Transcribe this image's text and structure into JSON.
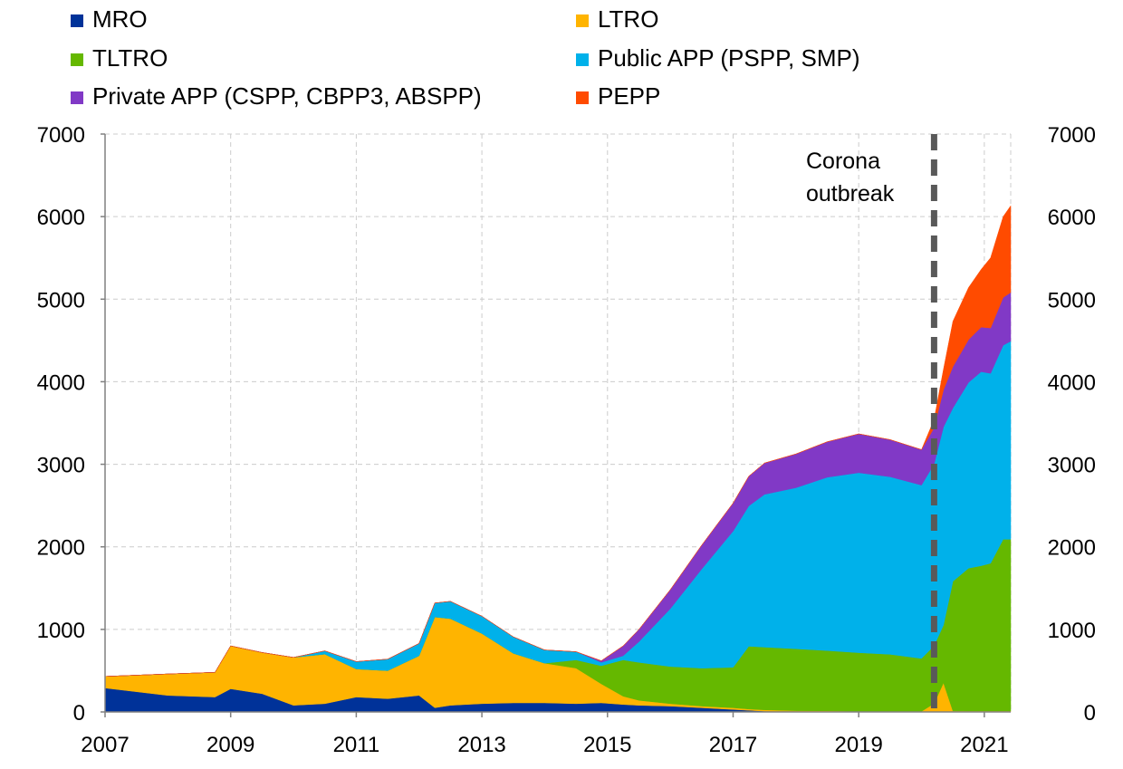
{
  "chart_data": {
    "type": "area",
    "stacked": true,
    "x_unit": "year",
    "xlim": [
      2007,
      2021.42
    ],
    "ylim": [
      0,
      7000
    ],
    "x_ticks": [
      2007,
      2009,
      2011,
      2013,
      2015,
      2017,
      2019,
      2021
    ],
    "x_tick_labels": [
      "2007",
      "2009",
      "2011",
      "2013",
      "2015",
      "2017",
      "2019",
      "2021"
    ],
    "y_ticks": [
      0,
      1000,
      2000,
      3000,
      4000,
      5000,
      6000,
      7000
    ],
    "y_tick_labels": [
      "0",
      "1000",
      "2000",
      "3000",
      "4000",
      "5000",
      "6000",
      "7000"
    ],
    "secondary_y_axis": true,
    "grid": true,
    "legend_position": "top",
    "x": [
      2007.0,
      2008.0,
      2008.75,
      2009.0,
      2009.5,
      2010.0,
      2010.5,
      2011.0,
      2011.5,
      2012.0,
      2012.25,
      2012.5,
      2013.0,
      2013.5,
      2014.0,
      2014.5,
      2014.9,
      2015.25,
      2015.5,
      2016.0,
      2016.5,
      2017.0,
      2017.25,
      2017.5,
      2018.0,
      2018.5,
      2019.0,
      2019.5,
      2020.0,
      2020.2,
      2020.35,
      2020.5,
      2020.75,
      2020.95,
      2021.1,
      2021.3,
      2021.42
    ],
    "series": [
      {
        "name": "MRO",
        "color": "#003299",
        "values": [
          290,
          200,
          180,
          280,
          220,
          80,
          100,
          180,
          160,
          200,
          50,
          80,
          100,
          110,
          110,
          100,
          110,
          90,
          80,
          70,
          50,
          30,
          20,
          10,
          5,
          3,
          3,
          3,
          2,
          2,
          2,
          2,
          1,
          1,
          1,
          1,
          1
        ]
      },
      {
        "name": "LTRO",
        "color": "#FFB400",
        "values": [
          140,
          260,
          300,
          520,
          500,
          580,
          600,
          340,
          340,
          480,
          1100,
          1050,
          850,
          600,
          480,
          430,
          230,
          100,
          60,
          30,
          20,
          20,
          15,
          15,
          10,
          10,
          5,
          5,
          5,
          100,
          350,
          10,
          10,
          10,
          10,
          10,
          10
        ]
      },
      {
        "name": "TLTRO",
        "color": "#65B800",
        "values": [
          0,
          0,
          0,
          0,
          0,
          0,
          0,
          0,
          0,
          0,
          0,
          0,
          0,
          0,
          0,
          100,
          220,
          440,
          460,
          450,
          460,
          490,
          760,
          760,
          750,
          730,
          710,
          690,
          640,
          700,
          700,
          1570,
          1730,
          1760,
          1790,
          2080,
          2080
        ]
      },
      {
        "name": "Public APP (PSPP, SMP)",
        "color": "#00B1EA",
        "values": [
          0,
          0,
          0,
          0,
          0,
          0,
          40,
          90,
          140,
          150,
          170,
          210,
          210,
          200,
          160,
          100,
          40,
          50,
          250,
          700,
          1200,
          1650,
          1700,
          1850,
          1950,
          2100,
          2180,
          2150,
          2100,
          2200,
          2400,
          2100,
          2250,
          2350,
          2300,
          2350,
          2400
        ]
      },
      {
        "name": "Private APP (CSPP, CBPP3, ABSPP)",
        "color": "#8139C6",
        "values": [
          0,
          0,
          0,
          0,
          0,
          0,
          0,
          0,
          0,
          0,
          0,
          0,
          0,
          0,
          0,
          0,
          20,
          120,
          150,
          230,
          290,
          340,
          360,
          380,
          410,
          430,
          470,
          450,
          430,
          440,
          450,
          500,
          520,
          540,
          550,
          580,
          590
        ]
      },
      {
        "name": "PEPP",
        "color": "#FF4B00",
        "values": [
          0,
          0,
          0,
          0,
          0,
          0,
          0,
          0,
          0,
          0,
          0,
          0,
          0,
          0,
          0,
          0,
          0,
          0,
          0,
          0,
          0,
          0,
          0,
          0,
          0,
          0,
          0,
          0,
          0,
          100,
          250,
          550,
          630,
          700,
          850,
          980,
          1050
        ]
      }
    ],
    "annotations": [
      {
        "text_lines": [
          "Corona",
          "outbreak"
        ],
        "marker": "vertical-dashed-line",
        "x": 2020.2
      }
    ]
  }
}
